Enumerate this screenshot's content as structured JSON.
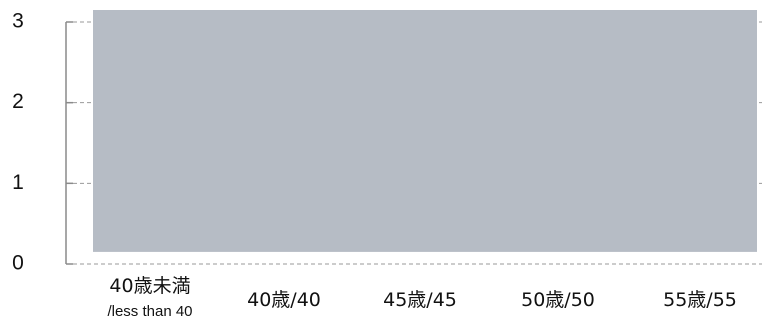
{
  "chart_data": {
    "type": "bar",
    "categories": [
      "40歳未満/less than 40",
      "40歳/40",
      "45歳/45",
      "50歳/50",
      "55歳/55"
    ],
    "category_lines": [
      [
        "40歳未満",
        "/less than 40"
      ],
      [
        "40歳/40"
      ],
      [
        "45歳/45"
      ],
      [
        "50歳/50"
      ],
      [
        "55歳/55"
      ]
    ],
    "background_band": {
      "from": 0.15,
      "to": 3,
      "color": "#b6bcc5"
    },
    "ylim": [
      0,
      3
    ],
    "yticks": [
      "0",
      "1",
      "2",
      "3"
    ],
    "grid": "dashed",
    "title": "",
    "xlabel": "",
    "ylabel": ""
  }
}
